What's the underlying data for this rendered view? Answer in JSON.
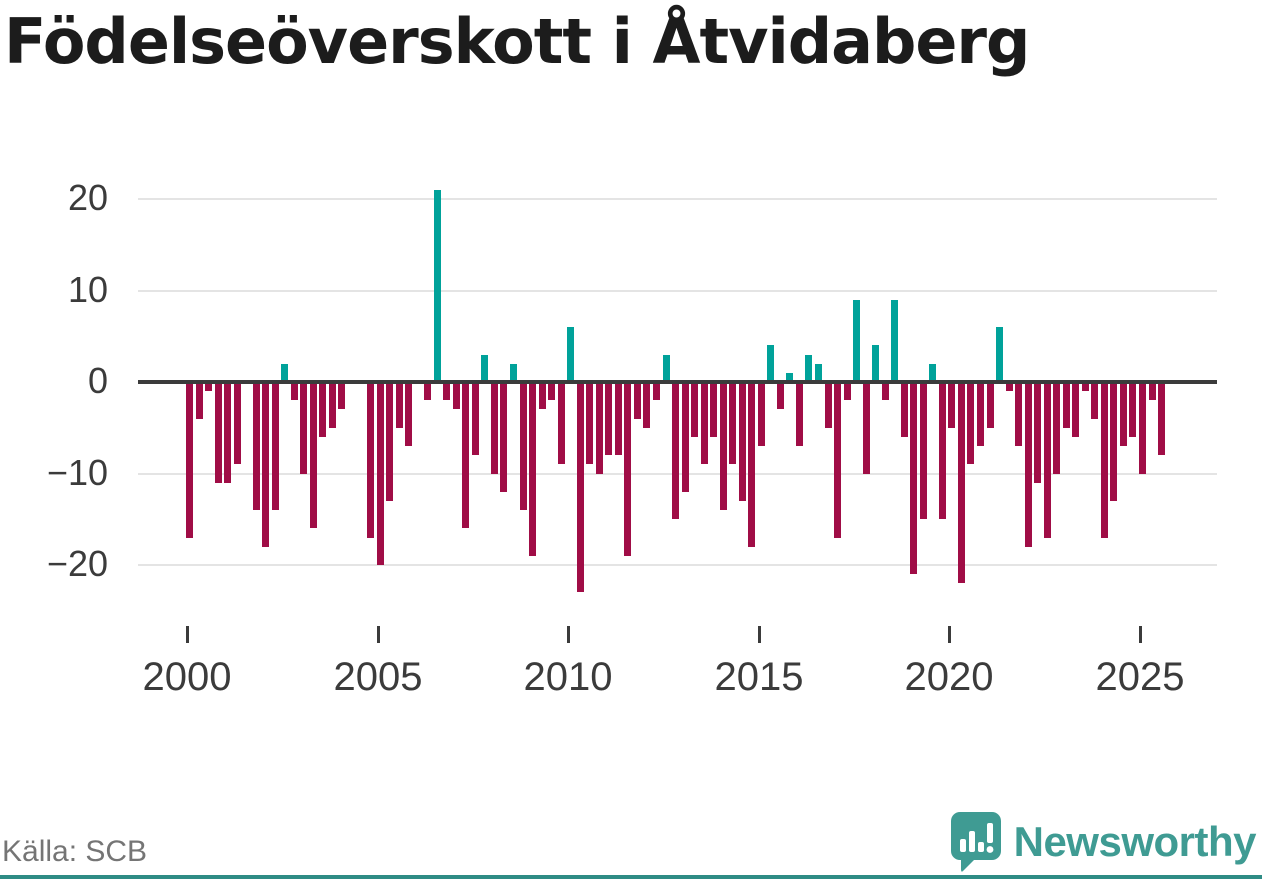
{
  "title": "Födelseöverskott i Åtvidaberg",
  "source": "Källa: SCB",
  "branding": {
    "logo_text": "Newsworthy",
    "logo_icon": "newsworthy-bubble-chart-icon"
  },
  "colors": {
    "positive_bar": "#00a29a",
    "negative_bar": "#a00d46",
    "zero_line": "#3b3b3b",
    "gridline": "#e4e4e4",
    "axis_text": "#3b3b3b",
    "title_text": "#1c1c1c",
    "source_text": "#757575",
    "logo_teal": "#3f9b93",
    "bottom_border": "#2e8c85"
  },
  "chart_data": {
    "type": "bar",
    "title": "Födelseöverskott i Åtvidaberg",
    "xlabel": "",
    "ylabel": "",
    "unit": "quarter",
    "start_year": 2000,
    "start_quarter": 1,
    "end_year": 2025,
    "end_quarter": 3,
    "x_tick_labels": [
      "2000",
      "2005",
      "2010",
      "2015",
      "2020",
      "2025"
    ],
    "y_tick_values": [
      20,
      10,
      0,
      -10,
      -20
    ],
    "y_tick_labels": [
      "20",
      "10",
      "0",
      "−10",
      "−20"
    ],
    "ylim": [
      -25,
      22
    ],
    "grid": "horizontal",
    "legend": "none",
    "values": [
      -17,
      -4,
      -1,
      -11,
      -11,
      -9,
      0,
      -14,
      -18,
      -14,
      2,
      -2,
      -10,
      -16,
      -6,
      -5,
      -3,
      0,
      0,
      -17,
      -20,
      -13,
      -5,
      -7,
      0,
      -2,
      21,
      -2,
      -3,
      -16,
      -8,
      3,
      -10,
      -12,
      2,
      -14,
      -19,
      -3,
      -2,
      -9,
      6,
      -23,
      -9,
      -10,
      -8,
      -8,
      -19,
      -4,
      -5,
      -2,
      3,
      -15,
      -12,
      -6,
      -9,
      -6,
      -14,
      -9,
      -13,
      -18,
      -7,
      4,
      -3,
      1,
      -7,
      3,
      2,
      -5,
      -17,
      -2,
      9,
      -10,
      4,
      -2,
      9,
      -6,
      -21,
      -15,
      2,
      -15,
      -5,
      -22,
      -9,
      -7,
      -5,
      6,
      -1,
      -7,
      -18,
      -11,
      -17,
      -10,
      -5,
      -6,
      -1,
      -4,
      -17,
      -13,
      -7,
      -6,
      -10,
      -2,
      -8
    ]
  }
}
